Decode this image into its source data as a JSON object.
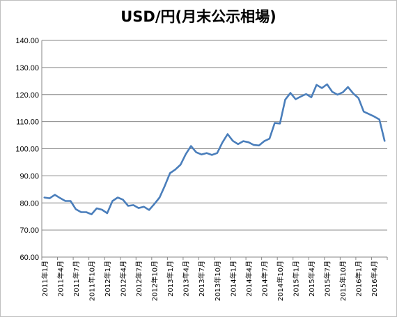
{
  "chart_data": {
    "type": "line",
    "title": "USD/円(月末公示相場)",
    "xlabel": "",
    "ylabel": "",
    "ylim": [
      60,
      140
    ],
    "yticks": [
      "60.00",
      "70.00",
      "80.00",
      "90.00",
      "100.00",
      "110.00",
      "120.00",
      "130.00",
      "140.00"
    ],
    "grid": true,
    "legend": "none",
    "line_color": "#4a7ebb",
    "x_tick_labels": [
      "2011年1月",
      "2011年4月",
      "2011年7月",
      "2011年10月",
      "2012年1月",
      "2012年4月",
      "2012年7月",
      "2012年10月",
      "2013年1月",
      "2013年4月",
      "2013年7月",
      "2013年10月",
      "2014年1月",
      "2014年4月",
      "2014年7月",
      "2014年10月",
      "2015年1月",
      "2015年4月",
      "2015年7月",
      "2015年10月",
      "2016年1月",
      "2016年4月"
    ],
    "x": [
      "2011-01",
      "2011-02",
      "2011-03",
      "2011-04",
      "2011-05",
      "2011-06",
      "2011-07",
      "2011-08",
      "2011-09",
      "2011-10",
      "2011-11",
      "2011-12",
      "2012-01",
      "2012-02",
      "2012-03",
      "2012-04",
      "2012-05",
      "2012-06",
      "2012-07",
      "2012-08",
      "2012-09",
      "2012-10",
      "2012-11",
      "2012-12",
      "2013-01",
      "2013-02",
      "2013-03",
      "2013-04",
      "2013-05",
      "2013-06",
      "2013-07",
      "2013-08",
      "2013-09",
      "2013-10",
      "2013-11",
      "2013-12",
      "2014-01",
      "2014-02",
      "2014-03",
      "2014-04",
      "2014-05",
      "2014-06",
      "2014-07",
      "2014-08",
      "2014-09",
      "2014-10",
      "2014-11",
      "2014-12",
      "2015-01",
      "2015-02",
      "2015-03",
      "2015-04",
      "2015-05",
      "2015-06",
      "2015-07",
      "2015-08",
      "2015-09",
      "2015-10",
      "2015-11",
      "2015-12",
      "2016-01",
      "2016-02",
      "2016-03",
      "2016-04",
      "2016-05",
      "2016-06"
    ],
    "values": [
      82.0,
      81.7,
      83.0,
      81.8,
      80.7,
      80.7,
      77.7,
      76.6,
      76.6,
      75.8,
      78.0,
      77.5,
      76.2,
      80.7,
      82.0,
      81.2,
      78.9,
      79.2,
      78.1,
      78.6,
      77.4,
      79.6,
      82.0,
      86.3,
      91.0,
      92.3,
      94.1,
      98.0,
      101.0,
      98.7,
      97.9,
      98.4,
      97.7,
      98.4,
      102.3,
      105.4,
      102.9,
      101.7,
      102.8,
      102.4,
      101.4,
      101.2,
      102.8,
      103.7,
      109.5,
      109.3,
      118.1,
      120.6,
      118.3,
      119.3,
      120.2,
      119.0,
      123.6,
      122.4,
      123.8,
      121.0,
      120.0,
      120.8,
      122.8,
      120.4,
      118.7,
      113.7,
      112.8,
      111.9,
      110.8,
      102.9
    ]
  }
}
